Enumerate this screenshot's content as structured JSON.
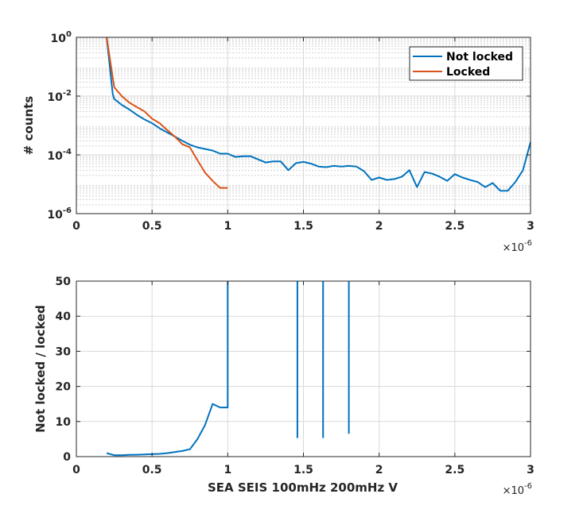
{
  "chart_data": [
    {
      "type": "line",
      "ylabel": "# counts",
      "xlabel": "",
      "yscale": "log",
      "xlim": [
        0,
        3e-06
      ],
      "ylim": [
        1e-06,
        1
      ],
      "x_multiplier_base": "×10",
      "x_multiplier_exp": "-6",
      "xtick_labels": [
        "0",
        "0.5",
        "1",
        "1.5",
        "2",
        "2.5",
        "3"
      ],
      "ytick_labels": [
        {
          "base": "10",
          "exp": "0",
          "value": 1
        },
        {
          "base": "10",
          "exp": "-2",
          "value": 0.01
        },
        {
          "base": "10",
          "exp": "-4",
          "value": 0.0001
        },
        {
          "base": "10",
          "exp": "-6",
          "value": 1e-06
        }
      ],
      "grid": true,
      "legend_position": "top-right",
      "series": [
        {
          "name": "Not locked",
          "color": "#0072BD",
          "points": [
            [
              2e-07,
              1.0
            ],
            [
              2.4e-07,
              0.012
            ],
            [
              2.5e-07,
              0.008
            ],
            [
              3e-07,
              0.005
            ],
            [
              3.5e-07,
              0.0035
            ],
            [
              4e-07,
              0.0023
            ],
            [
              4.5e-07,
              0.0016
            ],
            [
              5e-07,
              0.0012
            ],
            [
              5.5e-07,
              0.0008
            ],
            [
              6e-07,
              0.00058
            ],
            [
              6.5e-07,
              0.00042
            ],
            [
              7e-07,
              0.0003
            ],
            [
              7.5e-07,
              0.00022
            ],
            [
              8e-07,
              0.00018
            ],
            [
              9e-07,
              0.00014
            ],
            [
              9.5e-07,
              0.00011
            ],
            [
              1e-06,
              0.00011
            ],
            [
              1.05e-06,
              8.5e-05
            ],
            [
              1.1e-06,
              9e-05
            ],
            [
              1.15e-06,
              9e-05
            ],
            [
              1.2e-06,
              7e-05
            ],
            [
              1.25e-06,
              5.5e-05
            ],
            [
              1.3e-06,
              6e-05
            ],
            [
              1.35e-06,
              6e-05
            ],
            [
              1.4e-06,
              3e-05
            ],
            [
              1.45e-06,
              5.2e-05
            ],
            [
              1.5e-06,
              5.8e-05
            ],
            [
              1.55e-06,
              5e-05
            ],
            [
              1.6e-06,
              4e-05
            ],
            [
              1.65e-06,
              3.8e-05
            ],
            [
              1.7e-06,
              4.2e-05
            ],
            [
              1.75e-06,
              4e-05
            ],
            [
              1.8e-06,
              4.2e-05
            ],
            [
              1.85e-06,
              4e-05
            ],
            [
              1.9e-06,
              2.8e-05
            ],
            [
              1.95e-06,
              1.4e-05
            ],
            [
              2e-06,
              1.7e-05
            ],
            [
              2.05e-06,
              1.4e-05
            ],
            [
              2.1e-06,
              1.5e-05
            ],
            [
              2.15e-06,
              1.8e-05
            ],
            [
              2.2e-06,
              3e-05
            ],
            [
              2.25e-06,
              8e-06
            ],
            [
              2.3e-06,
              2.6e-05
            ],
            [
              2.35e-06,
              2.3e-05
            ],
            [
              2.4e-06,
              1.8e-05
            ],
            [
              2.45e-06,
              1.3e-05
            ],
            [
              2.5e-06,
              2.2e-05
            ],
            [
              2.55e-06,
              1.7e-05
            ],
            [
              2.6e-06,
              1.4e-05
            ],
            [
              2.65e-06,
              1.2e-05
            ],
            [
              2.7e-06,
              8e-06
            ],
            [
              2.75e-06,
              1.1e-05
            ],
            [
              2.8e-06,
              6e-06
            ],
            [
              2.85e-06,
              6e-06
            ],
            [
              2.9e-06,
              1.2e-05
            ],
            [
              2.95e-06,
              3e-05
            ],
            [
              3e-06,
              0.00027
            ]
          ]
        },
        {
          "name": "Locked",
          "color": "#D95319",
          "points": [
            [
              2e-07,
              1.0
            ],
            [
              2.5e-07,
              0.02
            ],
            [
              3e-07,
              0.01
            ],
            [
              3.5e-07,
              0.006
            ],
            [
              4e-07,
              0.0042
            ],
            [
              4.5e-07,
              0.003
            ],
            [
              5e-07,
              0.0017
            ],
            [
              5.5e-07,
              0.0012
            ],
            [
              6e-07,
              0.0007
            ],
            [
              6.5e-07,
              0.00042
            ],
            [
              7e-07,
              0.00023
            ],
            [
              7.5e-07,
              0.00018
            ],
            [
              8e-07,
              6.5e-05
            ],
            [
              8.5e-07,
              2.5e-05
            ],
            [
              9e-07,
              1.3e-05
            ],
            [
              9.5e-07,
              7.5e-06
            ],
            [
              1e-06,
              7.5e-06
            ]
          ]
        }
      ]
    },
    {
      "type": "line",
      "xlabel": "SEA SEIS 100mHz 200mHz V",
      "ylabel": "Not locked / locked",
      "yscale": "linear",
      "xlim": [
        0,
        3e-06
      ],
      "ylim": [
        0,
        50
      ],
      "x_multiplier_base": "×10",
      "x_multiplier_exp": "-6",
      "xtick_labels": [
        "0",
        "0.5",
        "1",
        "1.5",
        "2",
        "2.5",
        "3"
      ],
      "ytick_labels": [
        "0",
        "10",
        "20",
        "30",
        "40",
        "50"
      ],
      "yticks": [
        0,
        10,
        20,
        30,
        40,
        50
      ],
      "grid": true,
      "series": [
        {
          "color": "#0072BD",
          "segments": [
            [
              [
                2e-07,
                1.0
              ],
              [
                2.5e-07,
                0.4
              ],
              [
                3e-07,
                0.4
              ],
              [
                3.5e-07,
                0.5
              ],
              [
                4e-07,
                0.55
              ],
              [
                4.5e-07,
                0.6
              ],
              [
                5e-07,
                0.7
              ],
              [
                5.5e-07,
                0.8
              ],
              [
                6e-07,
                1.0
              ],
              [
                6.5e-07,
                1.3
              ],
              [
                7e-07,
                1.6
              ],
              [
                7.5e-07,
                2.1
              ],
              [
                8e-07,
                5.0
              ],
              [
                8.5e-07,
                9.0
              ],
              [
                9e-07,
                15.0
              ],
              [
                9.5e-07,
                14.0
              ],
              [
                1e-06,
                14.0
              ],
              [
                1e-06,
                50.0
              ]
            ],
            [
              [
                1.46e-06,
                50.0
              ],
              [
                1.46e-06,
                5.3
              ]
            ],
            [
              [
                1.63e-06,
                50.0
              ],
              [
                1.63e-06,
                5.3
              ]
            ],
            [
              [
                1.8e-06,
                50.0
              ],
              [
                1.8e-06,
                6.5
              ]
            ]
          ]
        }
      ]
    }
  ]
}
